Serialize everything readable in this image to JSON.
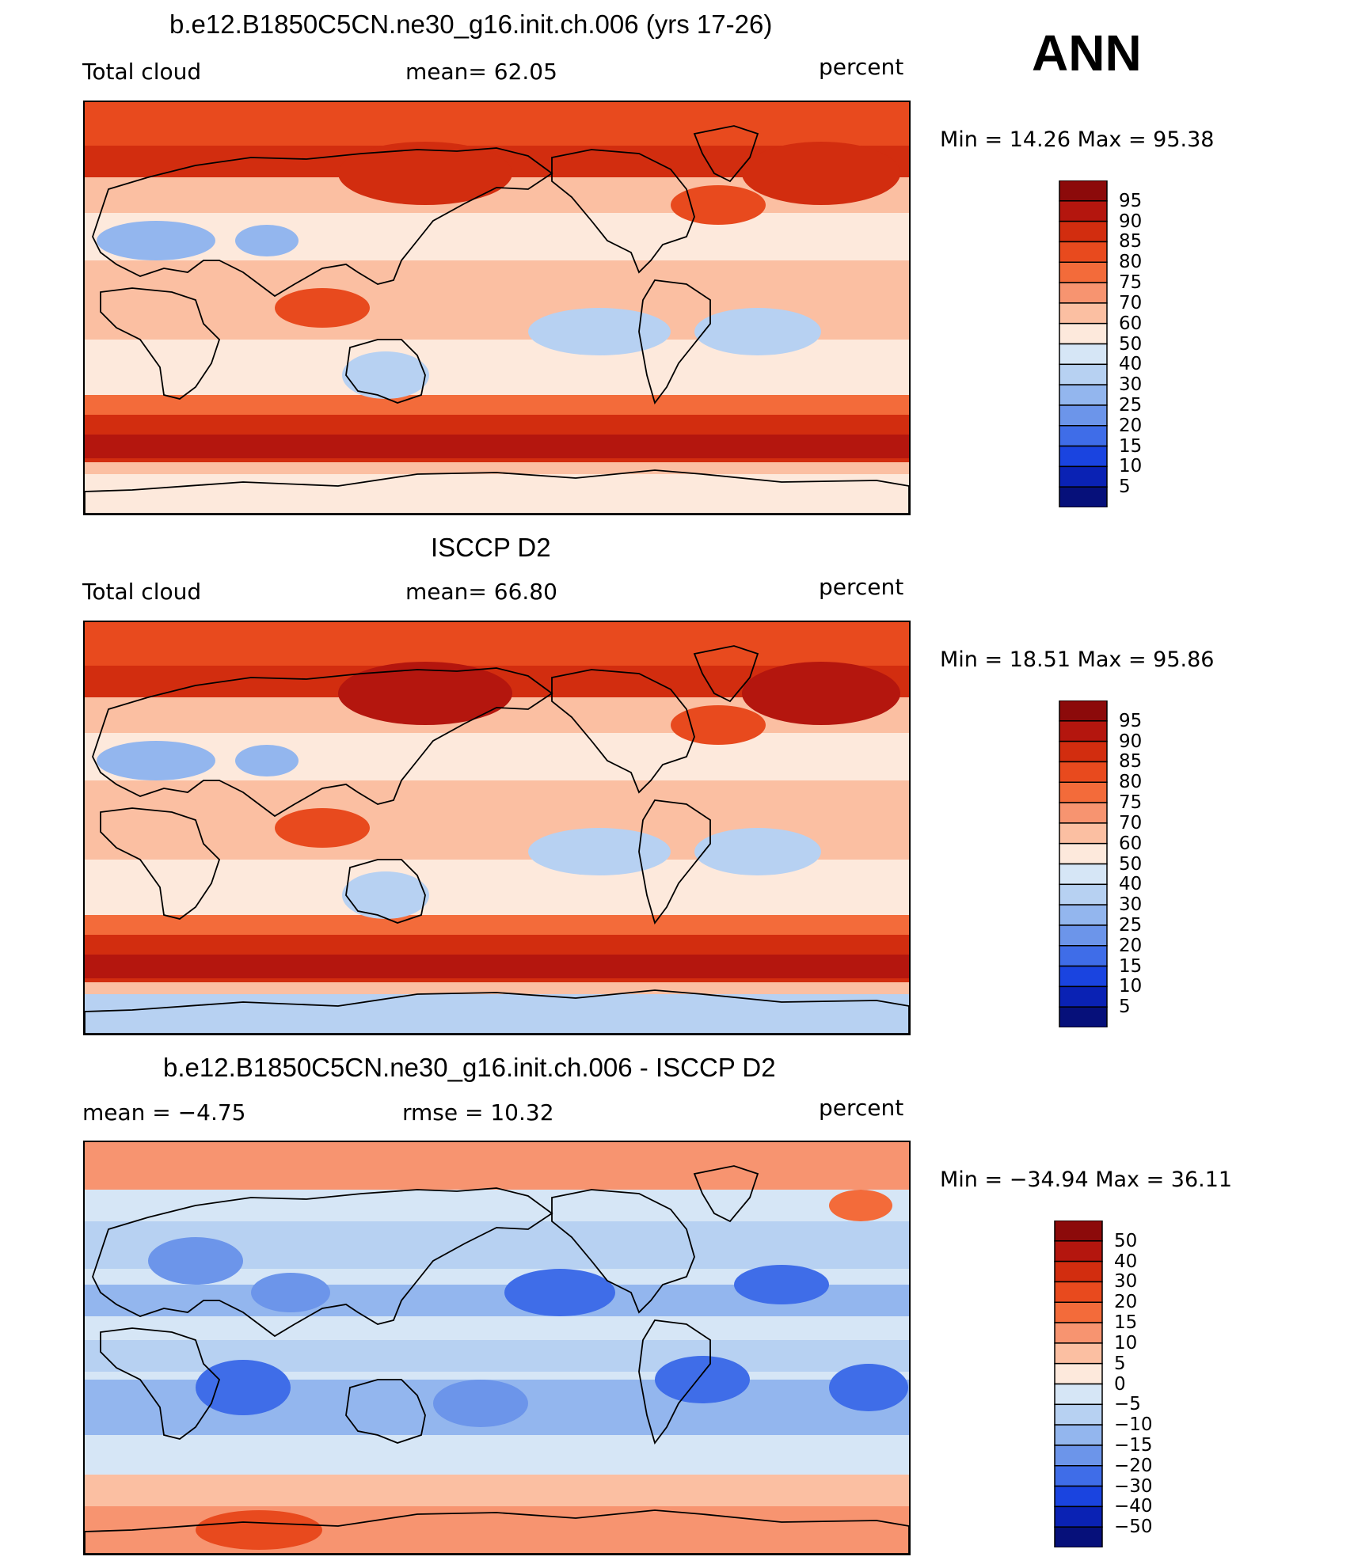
{
  "season": "ANN",
  "panels": [
    {
      "title": "b.e12.B1850C5CN.ne30_g16.init.ch.006 (yrs 17-26)",
      "left_label": "Total cloud",
      "mid_label": "mean=  62.05",
      "right_label": "percent",
      "minmax": "Min =   14.26  Max =   95.38",
      "kind": "model",
      "colorbar": {
        "labels": [
          "95",
          "90",
          "85",
          "80",
          "75",
          "70",
          "60",
          "50",
          "40",
          "30",
          "25",
          "20",
          "15",
          "10",
          "5"
        ],
        "colors": [
          "#8c0a0a",
          "#b4160e",
          "#d22d0f",
          "#e84a1e",
          "#f36b3a",
          "#f79470",
          "#fbbfa2",
          "#fde9dc",
          "#d6e6f6",
          "#b7d1f2",
          "#93b6ee",
          "#6c95ea",
          "#3f6de8",
          "#1a44e0",
          "#0a22b4",
          "#06107a"
        ]
      }
    },
    {
      "title": "ISCCP D2",
      "left_label": "Total cloud",
      "mid_label": "mean=  66.80",
      "right_label": "percent",
      "minmax": "Min =   18.51  Max =   95.86",
      "kind": "obs",
      "colorbar": {
        "labels": [
          "95",
          "90",
          "85",
          "80",
          "75",
          "70",
          "60",
          "50",
          "40",
          "30",
          "25",
          "20",
          "15",
          "10",
          "5"
        ],
        "colors": [
          "#8c0a0a",
          "#b4160e",
          "#d22d0f",
          "#e84a1e",
          "#f36b3a",
          "#f79470",
          "#fbbfa2",
          "#fde9dc",
          "#d6e6f6",
          "#b7d1f2",
          "#93b6ee",
          "#6c95ea",
          "#3f6de8",
          "#1a44e0",
          "#0a22b4",
          "#06107a"
        ]
      }
    },
    {
      "title": "b.e12.B1850C5CN.ne30_g16.init.ch.006 - ISCCP D2",
      "left_label": "mean =   −4.75",
      "mid_label": "rmse =   10.32",
      "right_label": "percent",
      "minmax": "Min = −34.94  Max =   36.11",
      "kind": "diff",
      "colorbar": {
        "labels": [
          "50",
          "40",
          "30",
          "20",
          "15",
          "10",
          "5",
          "0",
          "−5",
          "−10",
          "−15",
          "−20",
          "−30",
          "−40",
          "−50"
        ],
        "colors": [
          "#8c0a0a",
          "#b4160e",
          "#d22d0f",
          "#e84a1e",
          "#f36b3a",
          "#f79470",
          "#fbbfa2",
          "#fde9dc",
          "#d6e6f6",
          "#b7d1f2",
          "#93b6ee",
          "#6c95ea",
          "#3f6de8",
          "#1a44e0",
          "#0a22b4",
          "#06107a"
        ]
      }
    }
  ]
}
